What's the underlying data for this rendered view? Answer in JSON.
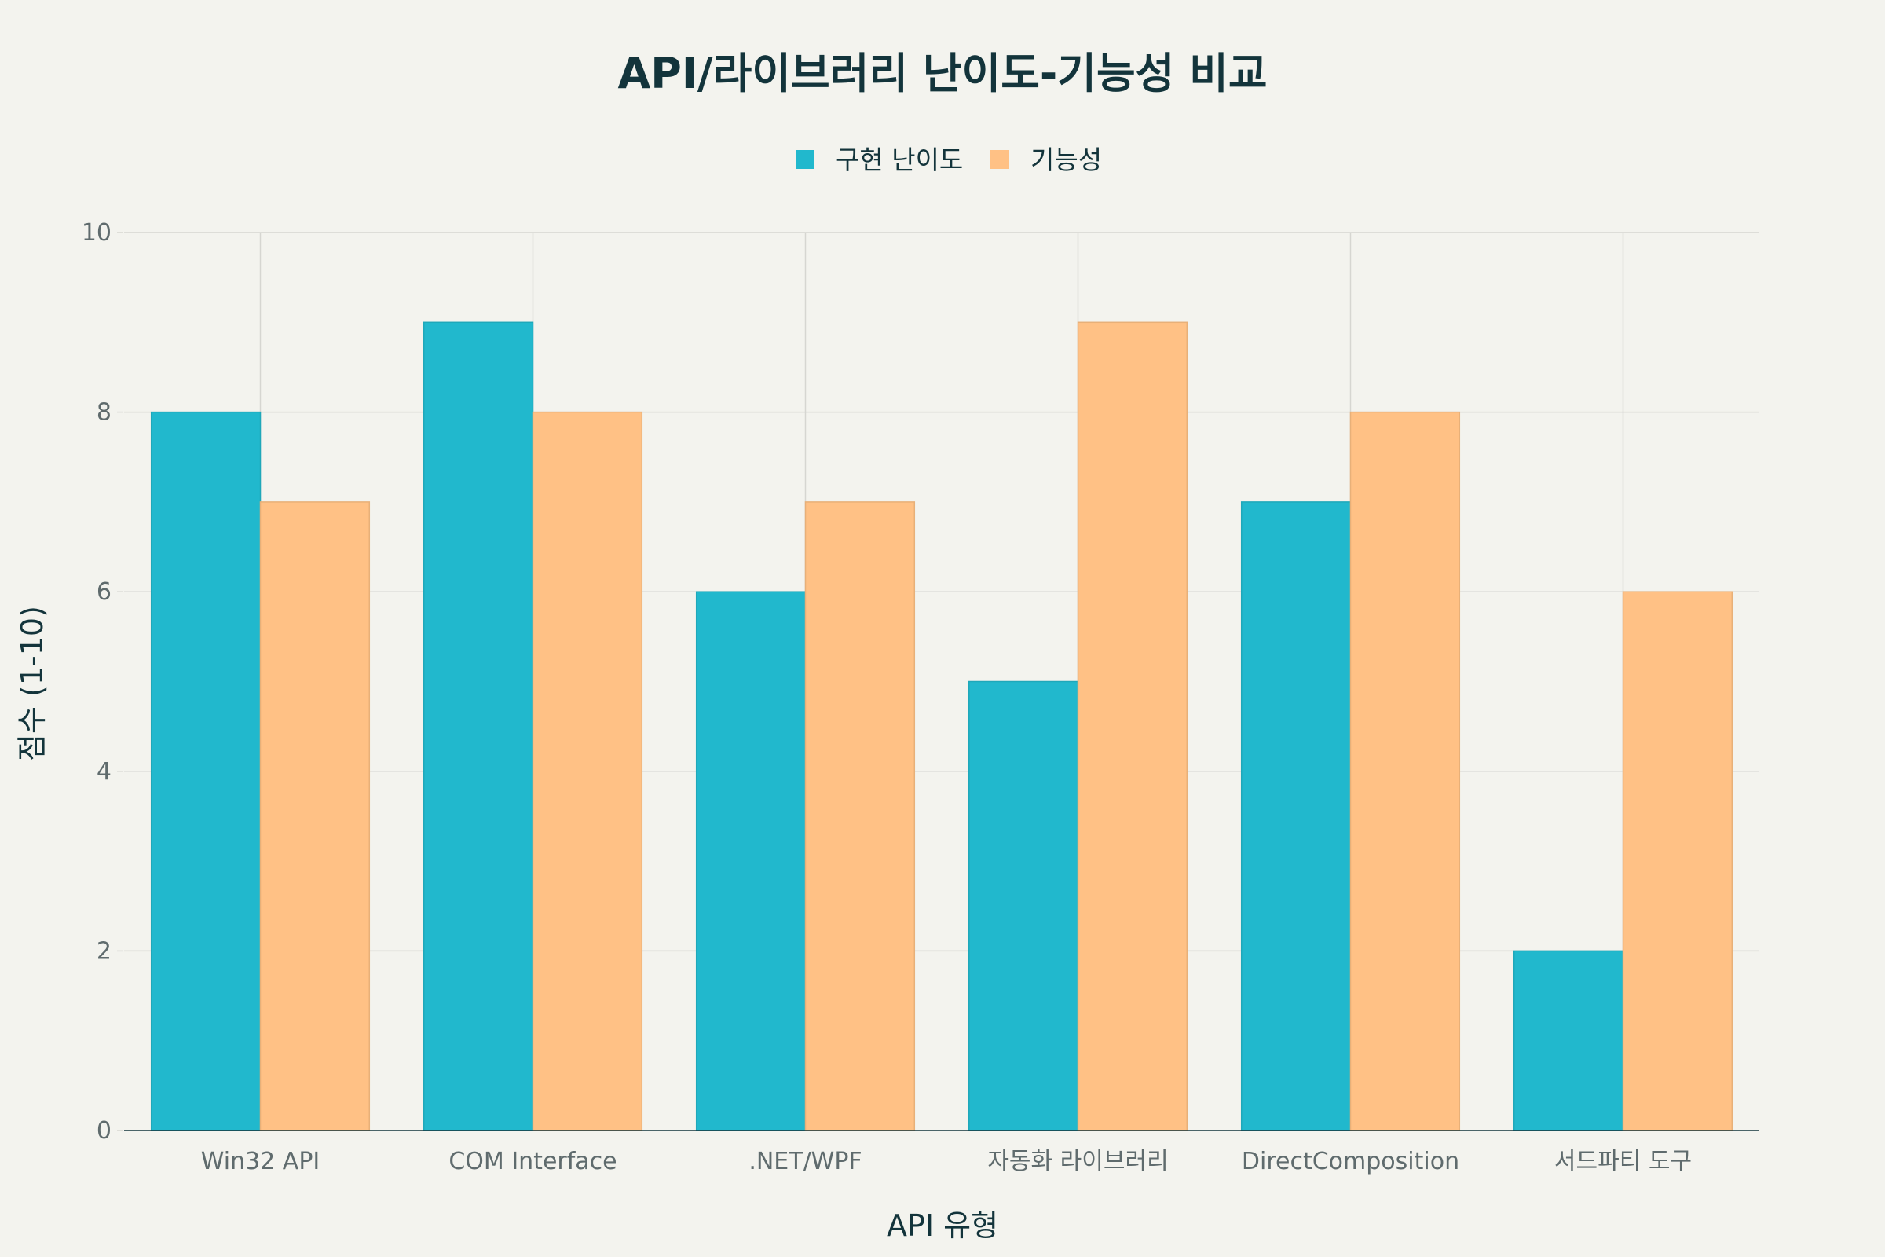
{
  "chart_data": {
    "type": "bar",
    "title": "API/라이브러리 난이도-기능성 비교",
    "xlabel": "API 유형",
    "ylabel": "점수 (1-10)",
    "categories": [
      "Win32 API",
      "COM Interface",
      ".NET/WPF",
      "자동화 라이브러리",
      "DirectComposition",
      "서드파티 도구"
    ],
    "series": [
      {
        "name": "구현 난이도",
        "color": "#21b8cd",
        "values": [
          8,
          9,
          6,
          5,
          7,
          2
        ]
      },
      {
        "name": "기능성",
        "color": "#ffc185",
        "values": [
          7,
          8,
          7,
          9,
          8,
          6
        ]
      }
    ],
    "ylim": [
      0,
      10
    ],
    "yticks": [
      0,
      2,
      4,
      6,
      8,
      10
    ],
    "grid": true,
    "legend_position": "top-center"
  }
}
